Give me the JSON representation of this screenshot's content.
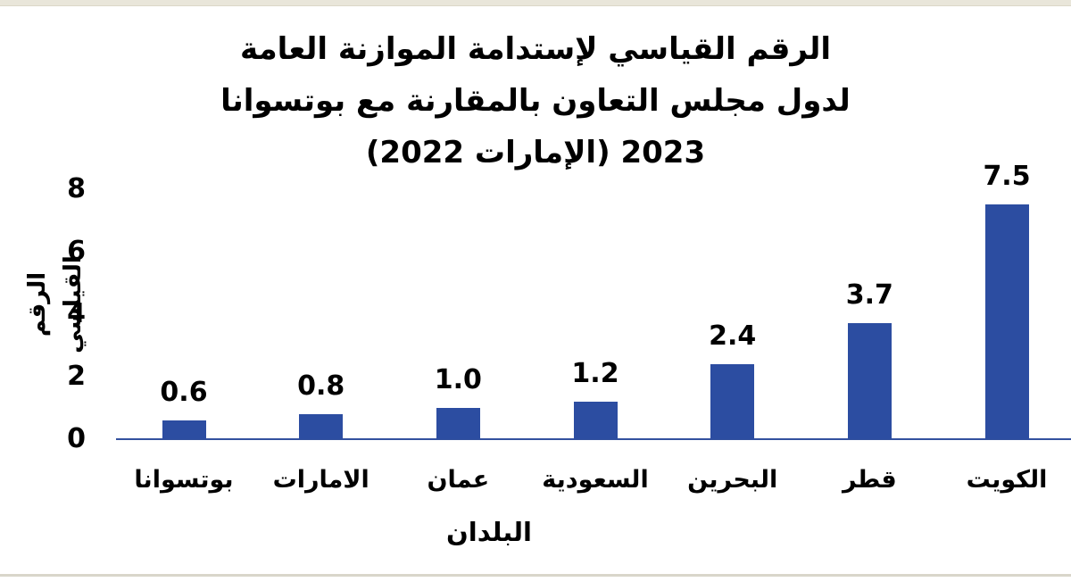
{
  "page": {
    "background": "#ffffff",
    "top_strip_color": "#e9e6da",
    "bottom_line_color": "#d9d6ca",
    "text_color": "#000000"
  },
  "chart_data": {
    "type": "bar",
    "title": "الرقم القياسي لإستدامة الموازنة العامة لدول مجلس التعاون بالمقارنة مع بوتسوانا 2023 (الإمارات 2022)",
    "title_lines": [
      "الرقم القياسي لإستدامة الموازنة العامة",
      "لدول مجلس التعاون بالمقارنة مع بوتسوانا",
      "2023 (الإمارات 2022)"
    ],
    "categories": [
      "بوتسوانا",
      "الامارات",
      "عمان",
      "السعودية",
      "البحرين",
      "قطر",
      "الكويت"
    ],
    "values": [
      0.6,
      0.8,
      1.0,
      1.2,
      2.4,
      3.7,
      7.5
    ],
    "value_labels": [
      "0.6",
      "0.8",
      "1.0",
      "1.2",
      "2.4",
      "3.7",
      "7.5"
    ],
    "xlabel": "البلدان",
    "ylabel": "الرقم القياسي",
    "y_ticks": [
      0,
      2,
      4,
      6,
      8
    ],
    "ylim": [
      0,
      8
    ],
    "bar_color": "#2c4da1",
    "axis_color": "#33519e",
    "grid": false,
    "legend": false,
    "text_direction": "rtl"
  }
}
